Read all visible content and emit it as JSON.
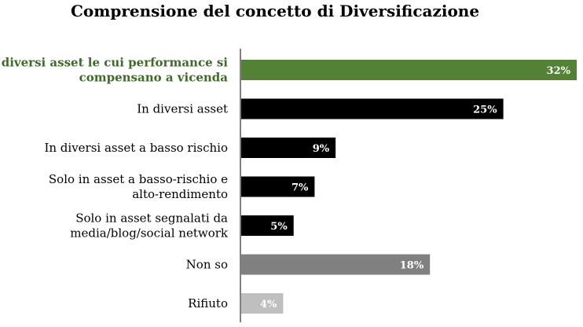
{
  "chart_data": {
    "type": "bar",
    "orientation": "horizontal",
    "title": "Comprensione del concetto di Diversificazione",
    "xlabel": "",
    "ylabel": "",
    "categories": [
      [
        "In diversi asset le cui performance si",
        "compensano a vicenda"
      ],
      [
        "In diversi asset"
      ],
      [
        "In diversi asset a basso rischio"
      ],
      [
        "Solo in asset a basso-rischio e",
        "alto-rendimento"
      ],
      [
        "Solo in asset segnalati da",
        "media/blog/social network"
      ],
      [
        "Non so"
      ],
      [
        "Rifiuto"
      ]
    ],
    "values": [
      32,
      25,
      9,
      7,
      5,
      18,
      4
    ],
    "value_labels": [
      "32%",
      "25%",
      "9%",
      "7%",
      "5%",
      "18%",
      "4%"
    ],
    "unit": "%",
    "xlim": [
      0,
      32
    ],
    "grid": false,
    "legend": "none",
    "colors": [
      "#538135",
      "#000000",
      "#000000",
      "#000000",
      "#000000",
      "#808080",
      "#bfbfbf"
    ],
    "highlight_label_color": "#3f6a2a",
    "default_label_color": "#000000"
  }
}
